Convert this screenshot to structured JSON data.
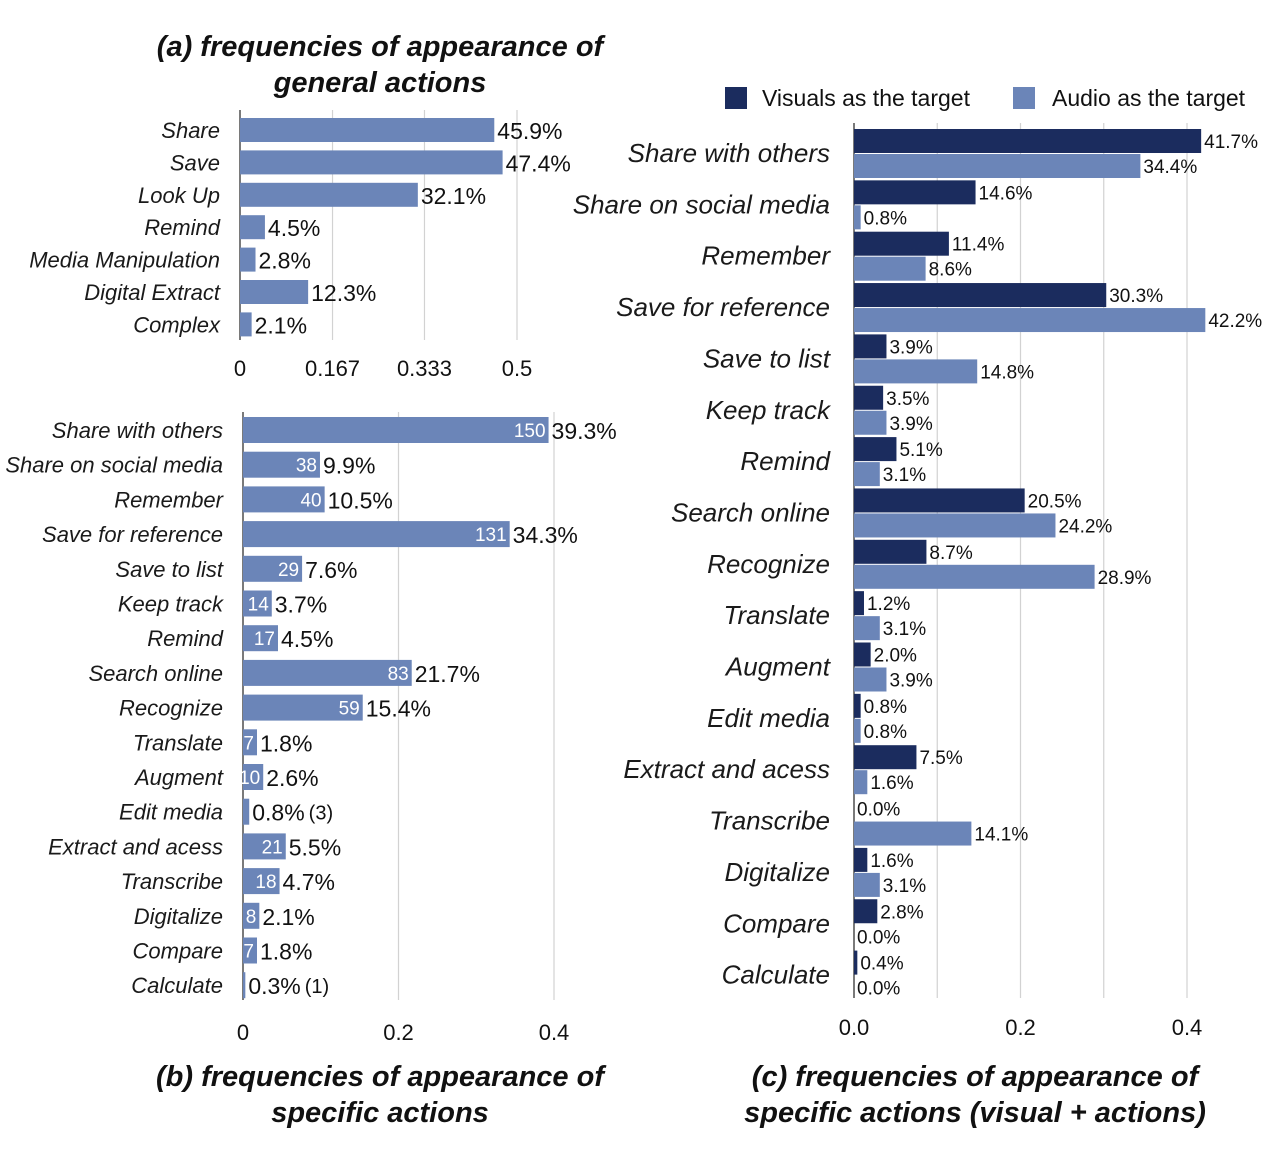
{
  "chart_data": [
    {
      "type": "bar",
      "orientation": "horizontal",
      "title": "(a) frequencies of appearance of general actions",
      "title_lines": [
        "(a) frequencies of appearance of",
        "general actions"
      ],
      "categories": [
        "Share",
        "Save",
        "Look Up",
        "Remind",
        "Media Manipulation",
        "Digital Extract",
        "Complex"
      ],
      "values": [
        0.459,
        0.474,
        0.321,
        0.045,
        0.028,
        0.123,
        0.021
      ],
      "value_labels": [
        "45.9%",
        "47.4%",
        "32.1%",
        "4.5%",
        "2.8%",
        "12.3%",
        "2.1%"
      ],
      "xlim": [
        0,
        0.5
      ],
      "xticks": [
        0,
        0.167,
        0.333,
        0.5
      ],
      "xtick_labels": [
        "0",
        "0.167",
        "0.333",
        "0.5"
      ],
      "grid": true,
      "color": "#6b85b8"
    },
    {
      "type": "bar",
      "orientation": "horizontal",
      "title": "(b) frequencies of appearance of specific actions",
      "title_lines": [
        "(b) frequencies of appearance of",
        "specific actions"
      ],
      "categories": [
        "Share with others",
        "Share on social media",
        "Remember",
        "Save for reference",
        "Save to list",
        "Keep track",
        "Remind",
        "Search online",
        "Recognize",
        "Translate",
        "Augment",
        "Edit media",
        "Extract and acess",
        "Transcribe",
        "Digitalize",
        "Compare",
        "Calculate"
      ],
      "values": [
        0.393,
        0.099,
        0.105,
        0.343,
        0.076,
        0.037,
        0.045,
        0.217,
        0.154,
        0.018,
        0.026,
        0.008,
        0.055,
        0.047,
        0.021,
        0.018,
        0.003
      ],
      "counts": [
        "150",
        "38",
        "40",
        "131",
        "29",
        "14",
        "17",
        "83",
        "59",
        "7",
        "10",
        "",
        "21",
        "18",
        "8",
        "7",
        ""
      ],
      "value_labels": [
        "39.3%",
        "9.9%",
        "10.5%",
        "34.3%",
        "7.6%",
        "3.7%",
        "4.5%",
        "21.7%",
        "15.4%",
        "1.8%",
        "2.6%",
        "0.8%",
        "5.5%",
        "4.7%",
        "2.1%",
        "1.8%",
        "0.3%"
      ],
      "extra_labels": [
        "",
        "",
        "",
        "",
        "",
        "",
        "",
        "",
        "",
        "",
        "",
        "(3)",
        "",
        "",
        "",
        "",
        "(1)"
      ],
      "xlim": [
        0,
        0.4
      ],
      "xticks": [
        0,
        0.2,
        0.4
      ],
      "xtick_labels": [
        "0",
        "0.2",
        "0.4"
      ],
      "grid": true,
      "color": "#6b85b8"
    },
    {
      "type": "bar",
      "orientation": "horizontal",
      "title": "(c) frequencies of appearance of specific actions (visual + actions)",
      "title_lines": [
        "(c) frequencies of appearance of",
        "specific actions (visual + actions)"
      ],
      "categories": [
        "Share with others",
        "Share on social media",
        "Remember",
        "Save for reference",
        "Save to list",
        "Keep track",
        "Remind",
        "Search online",
        "Recognize",
        "Translate",
        "Augment",
        "Edit media",
        "Extract and acess",
        "Transcribe",
        "Digitalize",
        "Compare",
        "Calculate"
      ],
      "series": [
        {
          "name": "Visuals as the target",
          "color": "#1b2c5e",
          "values": [
            0.417,
            0.146,
            0.114,
            0.303,
            0.039,
            0.035,
            0.051,
            0.205,
            0.087,
            0.012,
            0.02,
            0.008,
            0.075,
            0.0,
            0.016,
            0.028,
            0.004
          ],
          "value_labels": [
            "41.7%",
            "14.6%",
            "11.4%",
            "30.3%",
            "3.9%",
            "3.5%",
            "5.1%",
            "20.5%",
            "8.7%",
            "1.2%",
            "2.0%",
            "0.8%",
            "7.5%",
            "0.0%",
            "1.6%",
            "2.8%",
            "0.4%"
          ]
        },
        {
          "name": "Audio as the target",
          "color": "#6b85b8",
          "values": [
            0.344,
            0.008,
            0.086,
            0.422,
            0.148,
            0.039,
            0.031,
            0.242,
            0.289,
            0.031,
            0.039,
            0.008,
            0.016,
            0.141,
            0.031,
            0.0,
            0.0
          ],
          "value_labels": [
            "34.4%",
            "0.8%",
            "8.6%",
            "42.2%",
            "14.8%",
            "3.9%",
            "3.1%",
            "24.2%",
            "28.9%",
            "3.1%",
            "3.9%",
            "0.8%",
            "1.6%",
            "14.1%",
            "3.1%",
            "0.0%",
            "0.0%"
          ]
        }
      ],
      "xlim": [
        0,
        0.4
      ],
      "xticks": [
        0,
        0.1,
        0.2,
        0.3,
        0.4
      ],
      "xtick_labels": [
        "0.0",
        "",
        "0.2",
        "",
        "0.4"
      ],
      "grid": true,
      "legend": "top"
    }
  ]
}
